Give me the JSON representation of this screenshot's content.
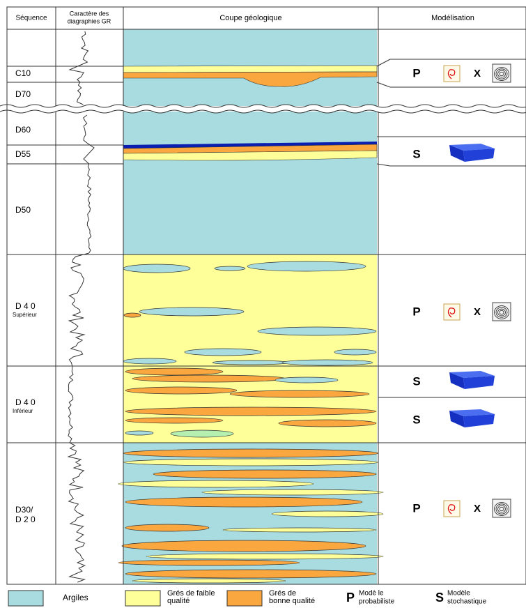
{
  "header": {
    "sequence": "Séquence",
    "gr": [
      "Caractère des",
      "diagraphies GR"
    ],
    "section": "Coupe géologique",
    "model": "Modélisation"
  },
  "sequences": [
    {
      "lines": [
        "C10"
      ]
    },
    {
      "lines": [
        "D70"
      ]
    },
    {
      "lines": [
        "D60"
      ]
    },
    {
      "lines": [
        "D55"
      ]
    },
    {
      "lines": [
        "D50"
      ]
    },
    {
      "lines": [
        "D 4 0",
        "Supérieur"
      ]
    },
    {
      "lines": [
        "D 4 0",
        "Inférieur"
      ]
    },
    {
      "lines": [
        "D30/",
        "D 2 0"
      ]
    }
  ],
  "models": [
    {
      "letter": "P",
      "operator": "X"
    },
    {
      "letter": "S"
    },
    {
      "letter": "P",
      "operator": "X"
    },
    {
      "letter": "S"
    },
    {
      "letter": "S"
    },
    {
      "letter": "P",
      "operator": "X"
    }
  ],
  "legend": [
    {
      "lines": [
        "Argiles"
      ]
    },
    {
      "lines": [
        "Grés de faible",
        "qualité"
      ]
    },
    {
      "lines": [
        "Grés de",
        "bonne qualité"
      ]
    },
    {
      "letter": "P",
      "lines": [
        "Modè le",
        "probabiliste"
      ]
    },
    {
      "letter": "S",
      "lines": [
        "Modèle",
        "stochastique"
      ]
    }
  ]
}
